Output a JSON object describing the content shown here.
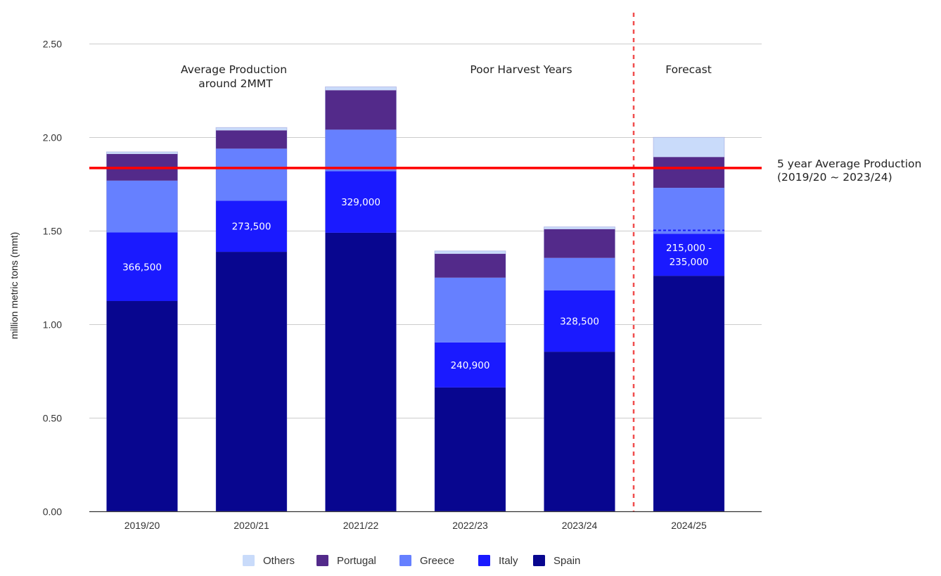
{
  "chart_data": {
    "type": "bar",
    "stacked": true,
    "title": "",
    "xlabel": "",
    "ylabel": "million metric tons (mmt)",
    "ylim": [
      0,
      2.5
    ],
    "yticks": [
      "0.00",
      "0.50",
      "1.00",
      "1.50",
      "2.00",
      "2.50"
    ],
    "ytick_values": [
      0,
      0.5,
      1.0,
      1.5,
      2.0,
      2.5
    ],
    "grid": true,
    "categories": [
      "2019/20",
      "2020/21",
      "2021/22",
      "2022/23",
      "2023/24",
      "2024/25"
    ],
    "series": [
      {
        "name": "Spain",
        "color": "#08068f",
        "values": [
          1.124,
          1.387,
          1.489,
          0.662,
          0.853,
          1.259
        ]
      },
      {
        "name": "Italy",
        "color": "#1a1aff",
        "values": [
          0.3665,
          0.2735,
          0.329,
          0.2409,
          0.3285,
          0.225
        ]
      },
      {
        "name": "Greece",
        "color": "#6680ff",
        "values": [
          0.277,
          0.278,
          0.222,
          0.346,
          0.173,
          0.245
        ]
      },
      {
        "name": "Portugal",
        "color": "#532a8a",
        "values": [
          0.143,
          0.098,
          0.211,
          0.128,
          0.154,
          0.165
        ]
      },
      {
        "name": "Others",
        "color": "#c9dbfa",
        "values": [
          0.011,
          0.015,
          0.018,
          0.015,
          0.012,
          0.105
        ]
      }
    ],
    "legend": {
      "position": "bottom",
      "order": [
        "Others",
        "Portugal",
        "Greece",
        "Italy",
        "Spain"
      ]
    },
    "data_labels": [
      {
        "category": "2019/20",
        "series": "Italy",
        "text": "366,500"
      },
      {
        "category": "2020/21",
        "series": "Italy",
        "text": "273,500"
      },
      {
        "category": "2021/22",
        "series": "Italy",
        "text": "329,000"
      },
      {
        "category": "2022/23",
        "series": "Italy",
        "text": "240,900"
      },
      {
        "category": "2023/24",
        "series": "Italy",
        "text": "328,500"
      },
      {
        "category": "2024/25",
        "series": "Italy",
        "text": "215,000 -\n235,000"
      }
    ],
    "reference_line": {
      "value": 1.835,
      "color": "#ff0000",
      "label_line1": "5 year Average Production",
      "label_line2": "(2019/20 ~ 2023/24)"
    },
    "forecast_divider": {
      "between": [
        "2023/24",
        "2024/25"
      ],
      "color": "#f04e4e"
    },
    "forecast_italy_range_upper": 1.504,
    "annotations": [
      {
        "lines": [
          "Average Production",
          "around 2MMT"
        ],
        "near": "2019/20-2020/21"
      },
      {
        "lines": [
          "Poor Harvest Years"
        ],
        "near": "2022/23-2023/24"
      },
      {
        "lines": [
          "Forecast"
        ],
        "near": "2024/25"
      }
    ]
  }
}
